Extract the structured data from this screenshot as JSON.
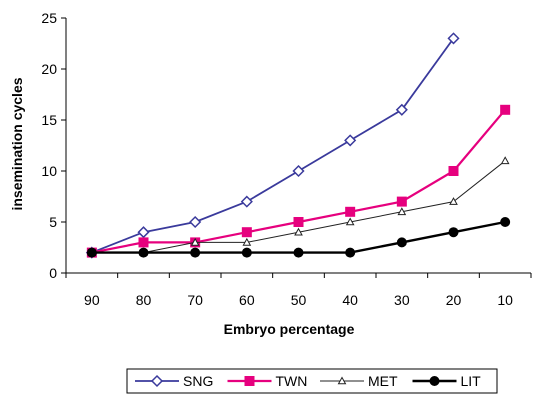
{
  "chart_data": {
    "type": "line",
    "xlabel": "Embryo percentage",
    "ylabel": "insemination cycles",
    "categories": [
      "90",
      "80",
      "70",
      "60",
      "50",
      "40",
      "30",
      "20",
      "10"
    ],
    "ylim": [
      0,
      25
    ],
    "yticks": [
      0,
      5,
      10,
      15,
      20,
      25
    ],
    "grid": false,
    "legend_position": "bottom",
    "series": [
      {
        "name": "SNG",
        "values": [
          2,
          4,
          5,
          7,
          10,
          13,
          16,
          23,
          null
        ],
        "color": "#3a3a9c",
        "marker": "diamond-open"
      },
      {
        "name": "TWN",
        "values": [
          2,
          3,
          3,
          4,
          5,
          6,
          7,
          10,
          16
        ],
        "color": "#e6007e",
        "marker": "square-filled"
      },
      {
        "name": "MET",
        "values": [
          2,
          2,
          3,
          3,
          4,
          5,
          6,
          7,
          11
        ],
        "color": "#222222",
        "marker": "triangle-open"
      },
      {
        "name": "LIT",
        "values": [
          2,
          2,
          2,
          2,
          2,
          2,
          3,
          4,
          5
        ],
        "color": "#000000",
        "marker": "circle-filled"
      }
    ]
  }
}
